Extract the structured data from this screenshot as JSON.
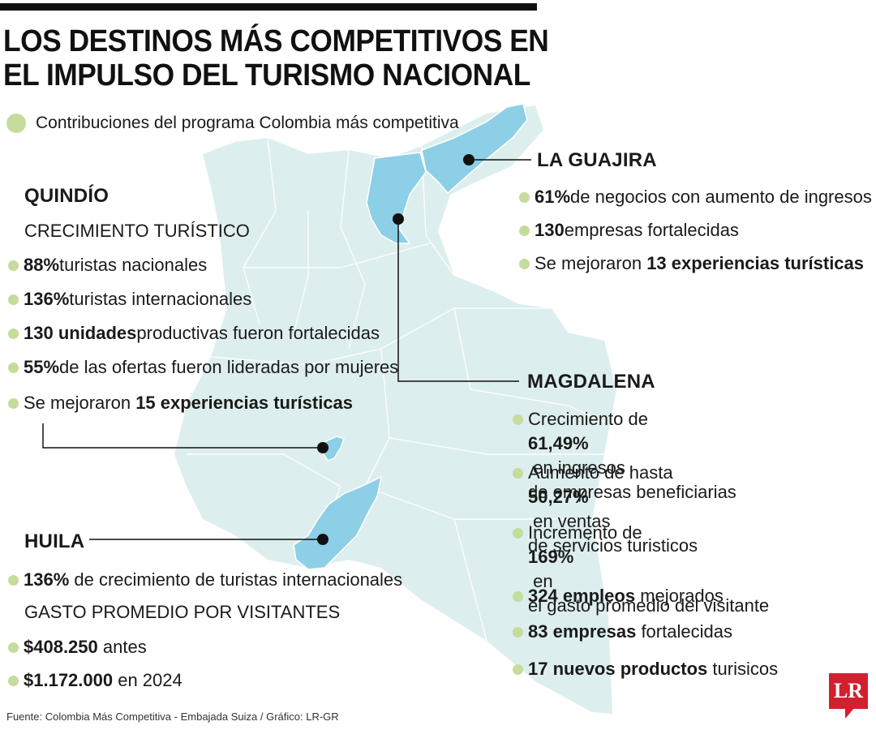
{
  "header": {
    "title_line1": "LOS DESTINOS MÁS COMPETITIVOS EN",
    "title_line2": "EL IMPULSO DEL TURISMO NACIONAL"
  },
  "legend": {
    "label": "Contribuciones del programa Colombia más competitiva"
  },
  "colors": {
    "map_base": "#ddeeee",
    "highlight": "#8ccfe6",
    "bullet": "#c5dc9c",
    "logo": "#d2202f"
  },
  "quindio": {
    "name": "QUINDÍO",
    "subtitle": "CRECIMIENTO TURÍSTICO",
    "items": [
      {
        "bold": "88%",
        "text": " turistas nacionales"
      },
      {
        "bold": "136%",
        "text": " turistas internacionales"
      },
      {
        "bold": "130 unidades",
        "text": " productivas fueron fortalecidas"
      },
      {
        "bold": "55%",
        "text": " de las ofertas fueron lideradas por mujeres"
      },
      {
        "pre": "Se mejoraron ",
        "bold": "15 experiencias turísticas"
      }
    ]
  },
  "guajira": {
    "name": "LA GUAJIRA",
    "items": [
      {
        "bold": "61%",
        "text": " de negocios con aumento de ingresos"
      },
      {
        "bold": "130",
        "text": " empresas fortalecidas"
      },
      {
        "pre": "Se mejoraron ",
        "bold": "13 experiencias turísticas"
      }
    ]
  },
  "magdalena": {
    "name": "MAGDALENA",
    "items": [
      {
        "pre": "Crecimiento de ",
        "bold": "61,49%",
        "text": " en ingresos",
        "line2": "de empresas beneficiarias"
      },
      {
        "pre": "Aumento de hasta ",
        "bold": "50,27%",
        "text": " en ventas",
        "line2": "de servicios turisticos"
      },
      {
        "pre": "Incremento de ",
        "bold": "169%",
        "text": " en",
        "line2": "el gasto promedio del visitante"
      },
      {
        "bold": "324 empleos",
        "text": " mejorados"
      },
      {
        "bold": "83 empresas",
        "text": " fortalecidas"
      },
      {
        "bold": "17 nuevos productos",
        "text": " turisicos"
      }
    ]
  },
  "huila": {
    "name": "HUILA",
    "items": [
      {
        "bold": "136%",
        "text": " de crecimiento de turistas internacionales"
      }
    ],
    "subtitle": "GASTO PROMEDIO POR VISITANTES",
    "spend": [
      {
        "bold": "$408.250",
        "text": " antes"
      },
      {
        "bold": "$1.172.000",
        "text": " en 2024"
      }
    ]
  },
  "footer": {
    "source": "Fuente: Colombia Más Competitiva - Embajada Suiza / Gráfico: LR-GR",
    "logo": "LR"
  }
}
